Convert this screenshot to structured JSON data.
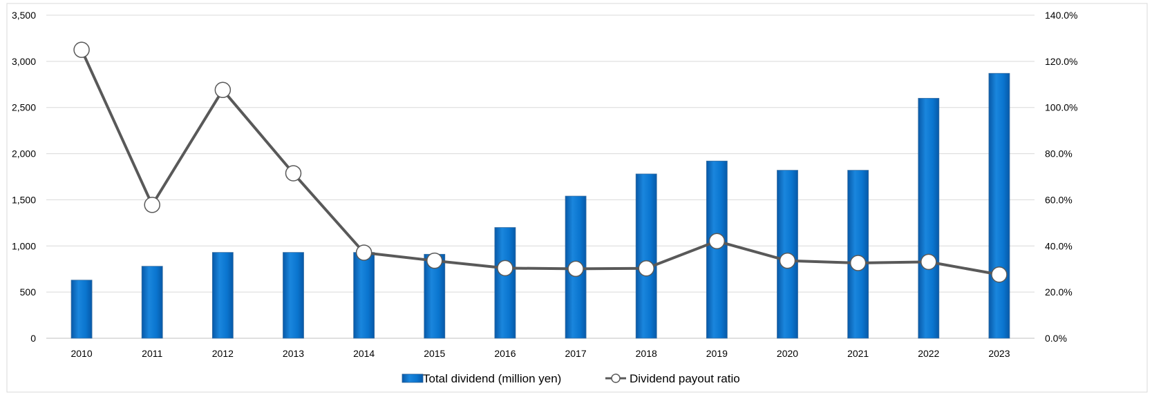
{
  "chart_data": {
    "type": "bar",
    "title": "",
    "xlabel": "",
    "ylabel": "",
    "categories": [
      "2010",
      "2011",
      "2012",
      "2013",
      "2014",
      "2015",
      "2016",
      "2017",
      "2018",
      "2019",
      "2020",
      "2021",
      "2022",
      "2023"
    ],
    "series": [
      {
        "name": "Total dividend (million yen)",
        "type": "bar",
        "axis": "left",
        "color": "#0A75CF",
        "values": [
          630,
          780,
          930,
          930,
          930,
          910,
          1200,
          1540,
          1780,
          1920,
          1820,
          1820,
          2600,
          2870
        ]
      },
      {
        "name": "Dividend payout ratio",
        "type": "line",
        "axis": "right",
        "color": "#595959",
        "marker": "circle-white",
        "values": [
          125.0,
          57.8,
          107.6,
          71.5,
          37.1,
          33.6,
          30.4,
          30.1,
          30.3,
          42.1,
          33.6,
          32.6,
          33.1,
          27.6
        ]
      }
    ],
    "ylim_left": [
      0,
      3500
    ],
    "ylim_right": [
      0,
      140
    ],
    "y_ticks_left": [
      "0",
      "500",
      "1,000",
      "1,500",
      "2,000",
      "2,500",
      "3,000",
      "3,500"
    ],
    "y_ticks_right": [
      "0.0%",
      "20.0%",
      "40.0%",
      "60.0%",
      "80.0%",
      "100.0%",
      "120.0%",
      "140.0%"
    ],
    "grid": true,
    "legend": "bottom-center"
  }
}
